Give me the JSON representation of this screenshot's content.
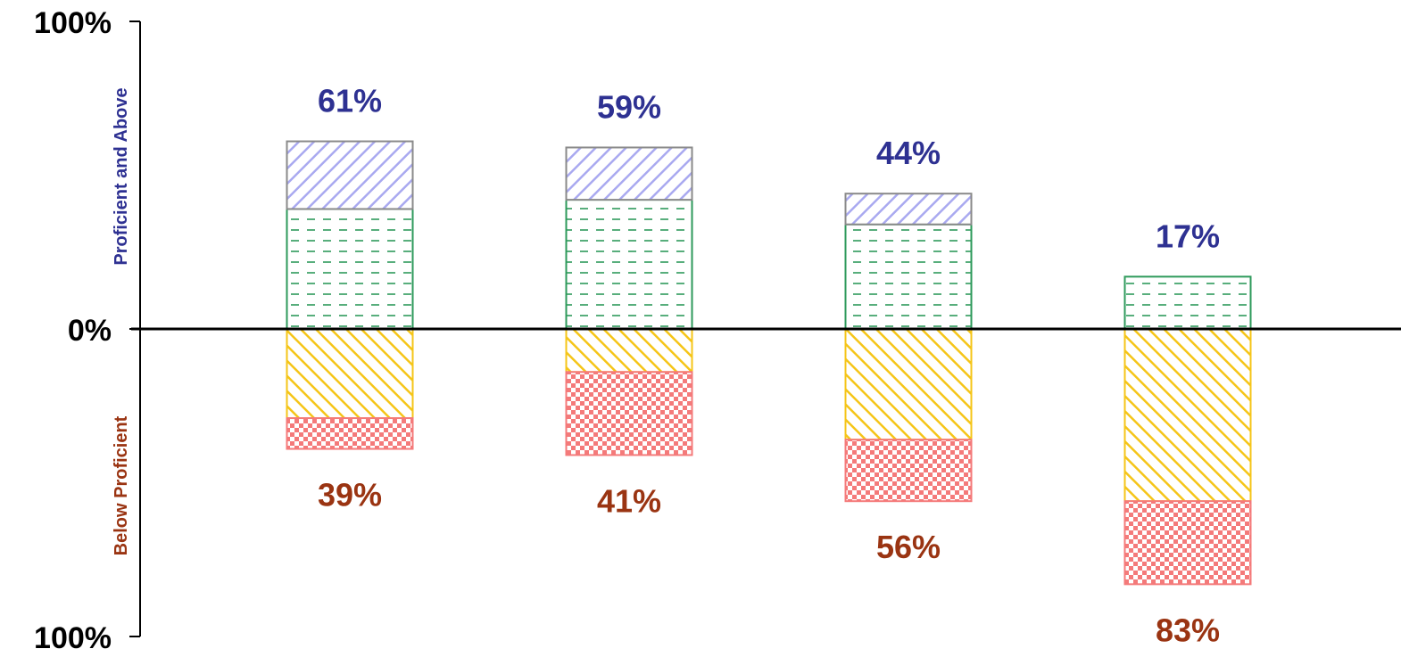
{
  "chart_data": {
    "type": "bar",
    "stacked": true,
    "diverging": true,
    "y_tick_labels": [
      "100%",
      "0%",
      "100%"
    ],
    "ylim": [
      -100,
      100
    ],
    "side_labels": {
      "above": "Proficient and Above",
      "below": "Below Proficient"
    },
    "categories": [
      "",
      "",
      "",
      ""
    ],
    "above_series": [
      {
        "values": [
          39,
          42,
          34,
          17
        ],
        "color": "#2e9a5b",
        "pattern": "dashes"
      },
      {
        "values": [
          22,
          17,
          10,
          0
        ],
        "color": "#a9a9f0",
        "pattern": "diagonal-hatch"
      }
    ],
    "below_series": [
      {
        "values": [
          -29,
          -14,
          -36,
          -56
        ],
        "color": "#f5c518",
        "pattern": "diagonal-hatch"
      },
      {
        "values": [
          -10,
          -27,
          -20,
          -27
        ],
        "color": "#f47a7a",
        "pattern": "checker"
      }
    ],
    "totals_above": [
      "61%",
      "59%",
      "44%",
      "17%"
    ],
    "totals_below": [
      "39%",
      "41%",
      "56%",
      "83%"
    ],
    "colors": {
      "above_text": "#2e3192",
      "below_text": "#9a3412",
      "axis": "#000000"
    }
  }
}
